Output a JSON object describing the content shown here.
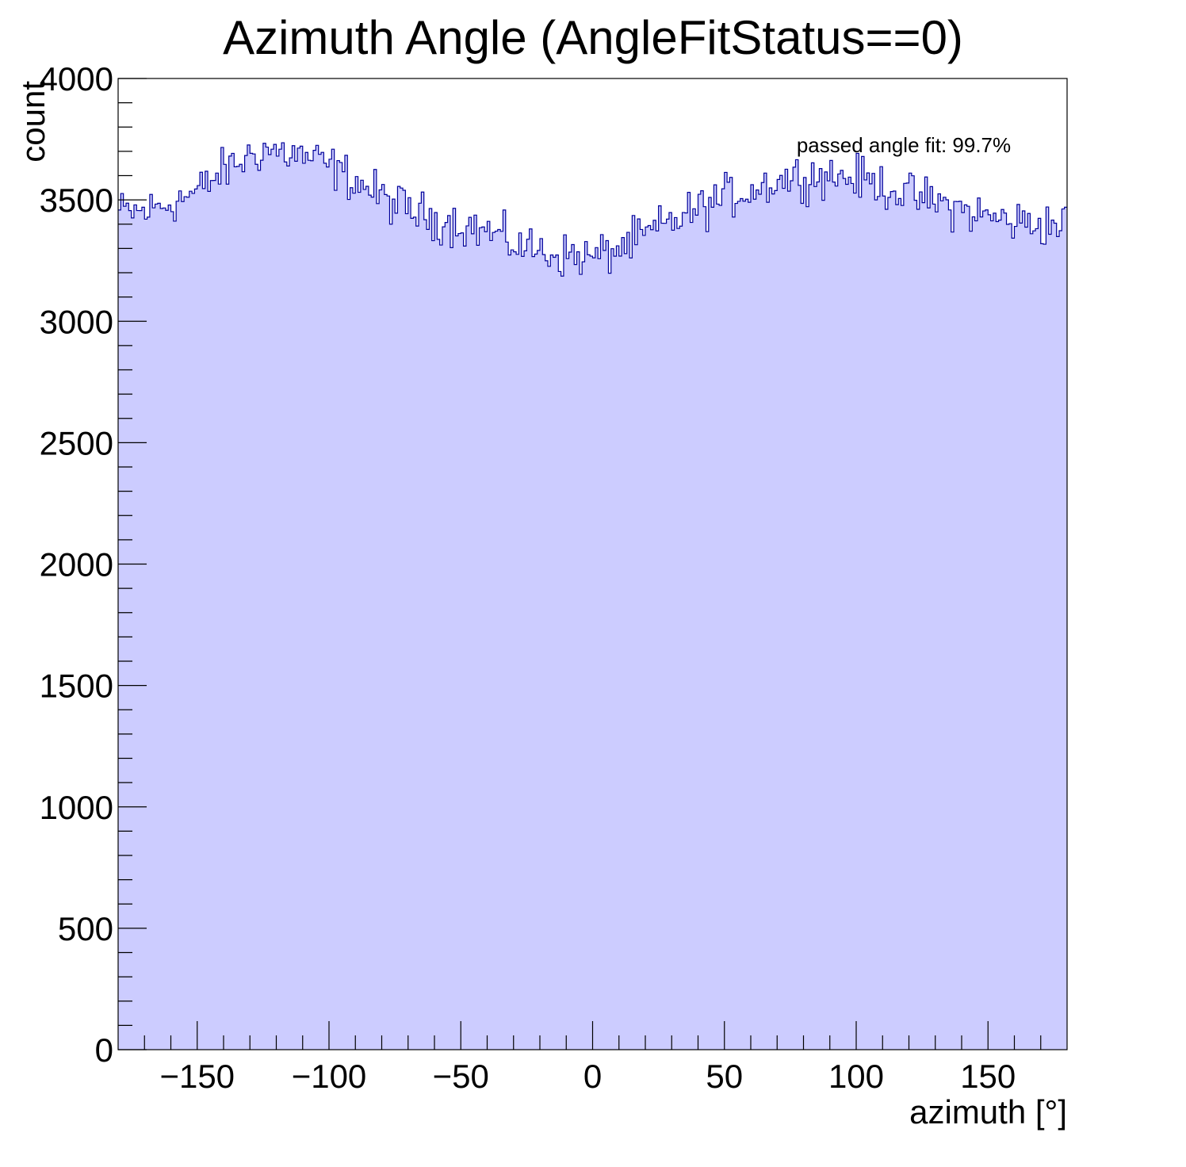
{
  "chart_data": {
    "type": "bar",
    "title": "Azimuth Angle (AngleFitStatus==0)",
    "xlabel": "azimuth [°]",
    "ylabel": "count",
    "annotation": "passed angle fit: 99.7%",
    "xlim": [
      -180,
      180
    ],
    "ylim": [
      0,
      4000
    ],
    "x_ticks": [
      -150,
      -100,
      -50,
      0,
      50,
      100,
      150
    ],
    "x_tick_labels": [
      "−150",
      "−100",
      "−50",
      "0",
      "50",
      "100",
      "150"
    ],
    "y_ticks": [
      0,
      500,
      1000,
      1500,
      2000,
      2500,
      3000,
      3500,
      4000
    ],
    "y_tick_labels": [
      "0",
      "500",
      "1000",
      "1500",
      "2000",
      "2500",
      "3000",
      "3500",
      "4000"
    ],
    "grid": false,
    "legend": "none",
    "fill_color": "#ccccff",
    "line_color": "#000099",
    "bin_count": 360,
    "bin_width": 1,
    "x": [
      -180,
      -170,
      -160,
      -150,
      -140,
      -130,
      -125,
      -120,
      -110,
      -100,
      -90,
      -80,
      -70,
      -60,
      -50,
      -40,
      -30,
      -20,
      -10,
      -5,
      0,
      5,
      10,
      20,
      30,
      40,
      50,
      60,
      70,
      80,
      90,
      100,
      110,
      120,
      130,
      140,
      150,
      160,
      170,
      180
    ],
    "values": [
      3450,
      3450,
      3490,
      3530,
      3620,
      3680,
      3710,
      3700,
      3680,
      3640,
      3580,
      3510,
      3460,
      3420,
      3400,
      3370,
      3320,
      3290,
      3270,
      3270,
      3260,
      3280,
      3300,
      3350,
      3410,
      3460,
      3510,
      3540,
      3580,
      3600,
      3600,
      3590,
      3560,
      3520,
      3490,
      3460,
      3430,
      3410,
      3400,
      3400
    ]
  }
}
